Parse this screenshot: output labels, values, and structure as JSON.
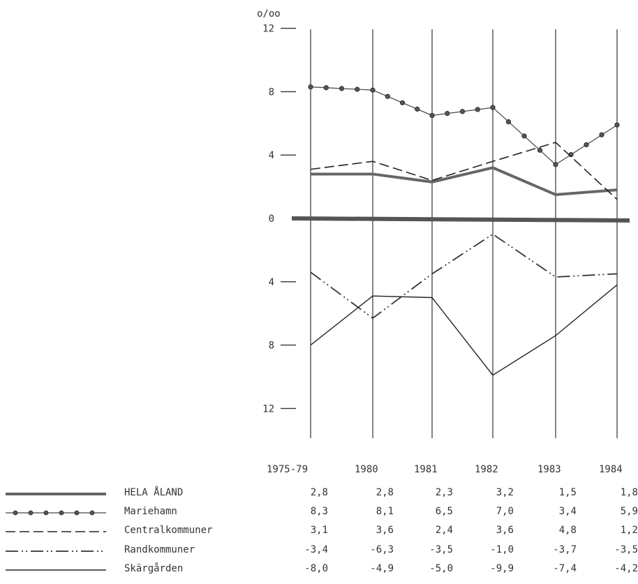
{
  "chart_data": {
    "type": "line",
    "unit_label": "o/oo",
    "y_ticks": [
      "12",
      "8",
      "4",
      "0",
      "4",
      "8",
      "12"
    ],
    "y_tick_values": [
      12,
      8,
      4,
      0,
      -4,
      -8,
      -12
    ],
    "ylim": [
      -12,
      12
    ],
    "categories": [
      "1975-79",
      "1980",
      "1981",
      "1982",
      "1983",
      "1984"
    ],
    "series": [
      {
        "name": "HELA ÅLAND",
        "style": "thick",
        "color": "#666666",
        "values": [
          2.8,
          2.8,
          2.3,
          3.2,
          1.5,
          1.8
        ],
        "table": [
          "2,8",
          "2,8",
          "2,3",
          "3,2",
          "1,5",
          "1,8"
        ]
      },
      {
        "name": "Mariehamn",
        "style": "dotted-markers",
        "color": "#444444",
        "values": [
          8.3,
          8.1,
          6.5,
          7.0,
          3.4,
          5.9
        ],
        "table": [
          "8,3",
          "8,1",
          "6,5",
          "7,0",
          "3,4",
          "5,9"
        ]
      },
      {
        "name": "Centralkommuner",
        "style": "dashed",
        "color": "#222222",
        "values": [
          3.1,
          3.6,
          2.4,
          3.6,
          4.8,
          1.2
        ],
        "table": [
          "3,1",
          "3,6",
          "2,4",
          "3,6",
          "4,8",
          "1,2"
        ]
      },
      {
        "name": "Randkommuner",
        "style": "dash-dot",
        "color": "#333333",
        "values": [
          -3.4,
          -6.3,
          -3.5,
          -1.0,
          -3.7,
          -3.5
        ],
        "table": [
          "-3,4",
          "-6,3",
          "-3,5",
          "-1,0",
          "-3,7",
          "-3,5"
        ]
      },
      {
        "name": "Skärgården",
        "style": "solid",
        "color": "#222222",
        "values": [
          -8.0,
          -4.9,
          -5.0,
          -9.9,
          -7.4,
          -4.2
        ],
        "table": [
          "-8,0",
          "-4,9",
          "-5,0",
          "-9,9",
          "-7,4",
          "-4,2"
        ]
      }
    ],
    "grid": false,
    "legend": "bottom-left"
  }
}
